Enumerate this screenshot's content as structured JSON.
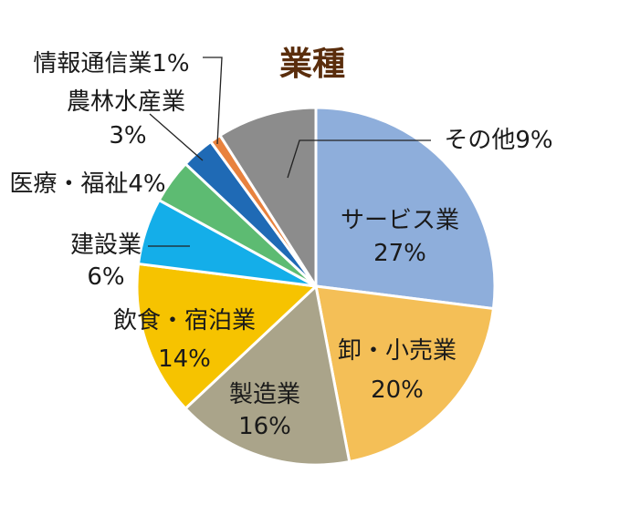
{
  "chart_data": {
    "type": "pie",
    "title": "業種",
    "start_angle_deg": 0,
    "direction": "clockwise",
    "slices": [
      {
        "label": "サービス業",
        "value": 27,
        "value_text": "27%",
        "color": "#8eaedb"
      },
      {
        "label": "卸・小売業",
        "value": 20,
        "value_text": "20%",
        "color": "#f4bf57"
      },
      {
        "label": "製造業",
        "value": 16,
        "value_text": "16%",
        "color": "#aaa48a"
      },
      {
        "label": "飲食・宿泊業",
        "value": 14,
        "value_text": "14%",
        "color": "#f6c300"
      },
      {
        "label": "建設業",
        "value": 6,
        "value_text": "6%",
        "color": "#14aee9"
      },
      {
        "label": "医療・福祉",
        "value": 4,
        "value_text": "4%",
        "color": "#5dbb72"
      },
      {
        "label": "農林水産業",
        "value": 3,
        "value_text": "3%",
        "color": "#1f6ab5"
      },
      {
        "label": "情報通信業",
        "value": 1,
        "value_text": "1%",
        "color": "#e8823e"
      },
      {
        "label": "その他",
        "value": 9,
        "value_text": "9%",
        "color": "#8c8c8c"
      }
    ]
  }
}
